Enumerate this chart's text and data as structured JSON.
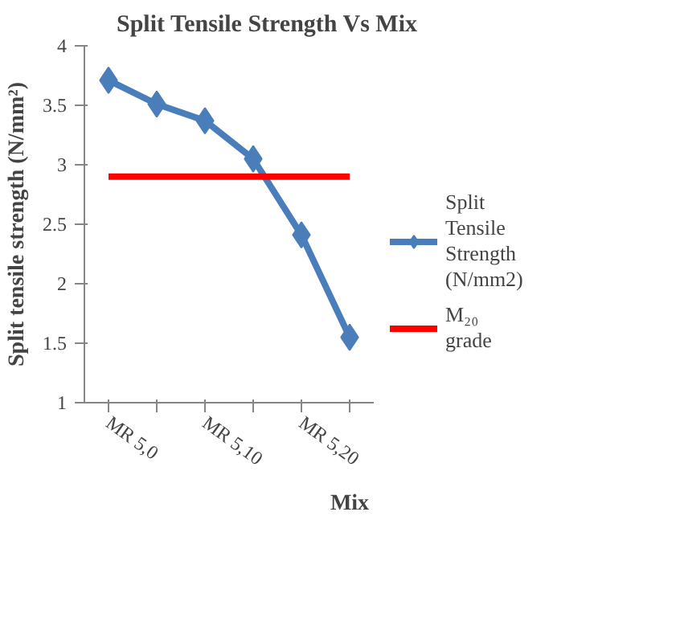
{
  "chart_data": {
    "type": "line",
    "title": "Split Tensile Strength Vs Mix",
    "xlabel": "Mix",
    "ylabel": "Split tensile strength (N/mm²)",
    "categories": [
      "MR 5,0",
      null,
      "MR 5,10",
      null,
      "MR 5,20",
      null
    ],
    "series": [
      {
        "name": "Split Tensile Strength (N/mm2)",
        "color": "#4a7ebb",
        "values": [
          3.71,
          3.51,
          3.37,
          3.05,
          2.41,
          1.55
        ],
        "marker": "diamond"
      },
      {
        "name": "M₂₀ grade",
        "color": "#ff0000",
        "values": [
          2.9,
          2.9,
          2.9,
          2.9,
          2.9,
          2.9
        ],
        "marker": "none"
      }
    ],
    "ylim": [
      1,
      4
    ],
    "yticks": [
      1,
      1.5,
      2,
      2.5,
      3,
      3.5,
      4
    ],
    "grid": false,
    "legend": "right"
  }
}
